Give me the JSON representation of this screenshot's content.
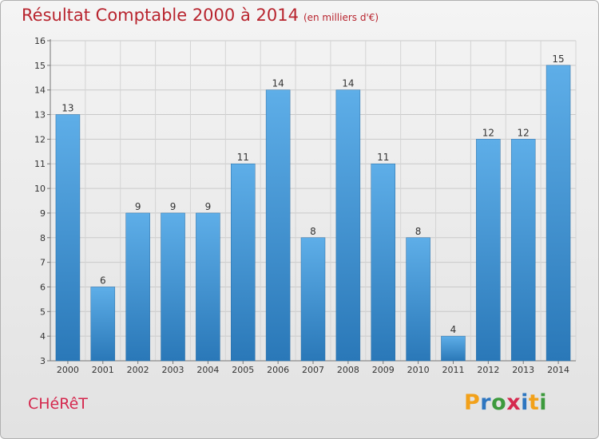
{
  "header": {
    "title": "Résultat Comptable 2000 à 2014",
    "unit": "(en milliers d'€)"
  },
  "commune": "CHéRêT",
  "logo": {
    "text": "Proxiti",
    "letters": [
      {
        "ch": "P",
        "color": "#f2a11a"
      },
      {
        "ch": "r",
        "color": "#2e76c0"
      },
      {
        "ch": "o",
        "color": "#3c9a3c"
      },
      {
        "ch": "x",
        "color": "#d5284e"
      },
      {
        "ch": "i",
        "color": "#2e76c0"
      },
      {
        "ch": "t",
        "color": "#f2a11a"
      },
      {
        "ch": "i",
        "color": "#3c9a3c"
      }
    ]
  },
  "colors": {
    "title": "#b8242e",
    "commune": "#d5284e",
    "bar_top": "#5eaee8",
    "bar_bottom": "#2a78b8"
  },
  "chart_data": {
    "type": "bar",
    "title": "Résultat Comptable 2000 à 2014",
    "subtitle": "(en milliers d'€)",
    "xlabel": "",
    "ylabel": "",
    "categories": [
      "2000",
      "2001",
      "2002",
      "2003",
      "2004",
      "2005",
      "2006",
      "2007",
      "2008",
      "2009",
      "2010",
      "2011",
      "2012",
      "2013",
      "2014"
    ],
    "values": [
      13,
      6,
      9,
      9,
      9,
      11,
      14,
      8,
      14,
      11,
      8,
      4,
      12,
      12,
      15
    ],
    "ylim": [
      3,
      16
    ],
    "yticks": [
      3,
      4,
      5,
      6,
      7,
      8,
      9,
      10,
      11,
      12,
      13,
      14,
      15,
      16
    ],
    "grid": true,
    "legend": "none"
  }
}
